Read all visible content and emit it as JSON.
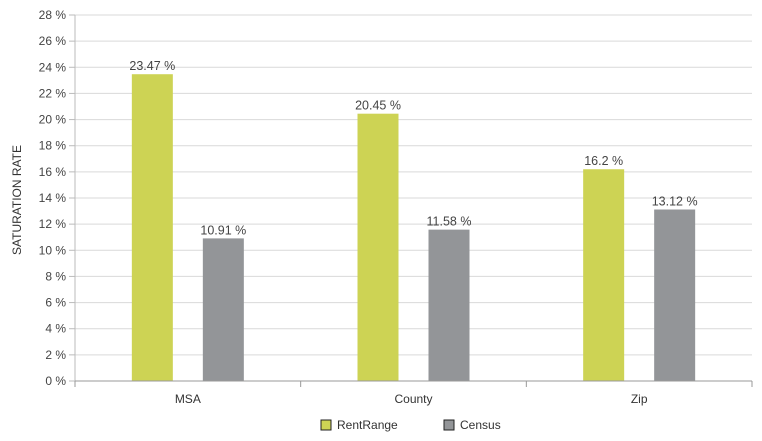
{
  "chart_data": {
    "type": "bar",
    "title": "",
    "xlabel": "",
    "ylabel": "SATURATION RATE",
    "categories": [
      "MSA",
      "County",
      "Zip"
    ],
    "series": [
      {
        "name": "RentRange",
        "color": "#cdd354",
        "values": [
          23.47,
          20.45,
          16.2
        ],
        "labels": [
          "23.47 %",
          "20.45 %",
          "16.2 %"
        ]
      },
      {
        "name": "Census",
        "color": "#939598",
        "values": [
          10.91,
          11.58,
          13.12
        ],
        "labels": [
          "10.91 %",
          "11.58 %",
          "13.12 %"
        ]
      }
    ],
    "ylim": [
      0,
      28
    ],
    "ytick_step": 2,
    "ytick_labels": [
      "0 %",
      "2 %",
      "4 %",
      "6 %",
      "8 %",
      "10 %",
      "12 %",
      "14 %",
      "16 %",
      "18 %",
      "20 %",
      "22 %",
      "24 %",
      "26 %",
      "28 %"
    ],
    "grid": true,
    "legend_position": "bottom-center"
  }
}
